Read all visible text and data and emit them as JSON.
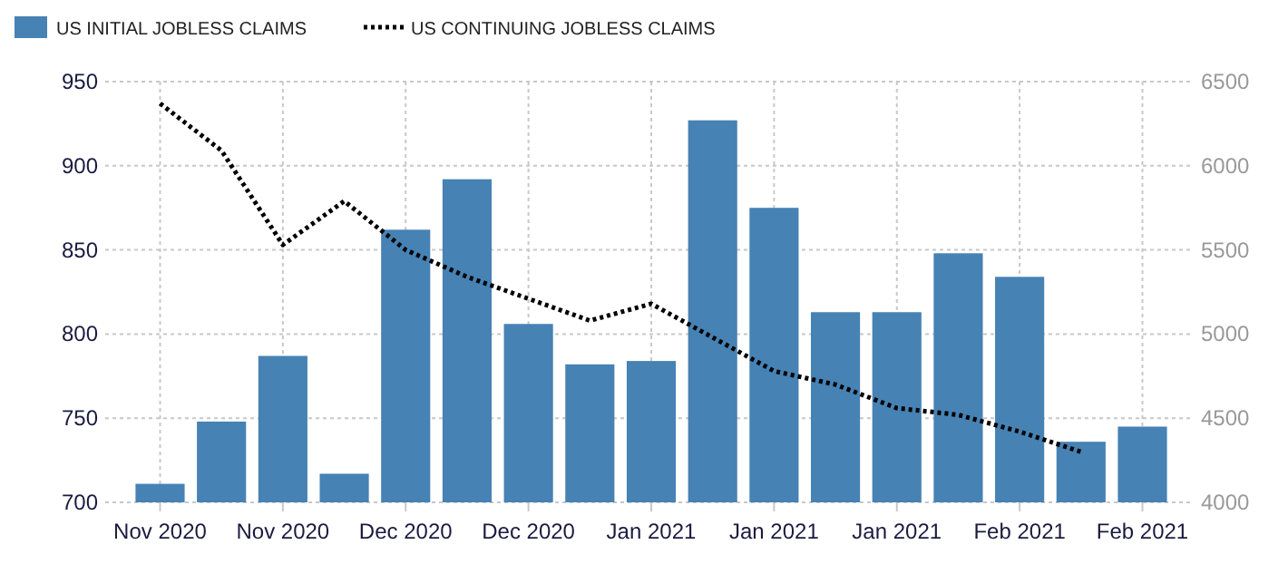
{
  "chart_data": {
    "type": "bar",
    "categories": [
      "Nov 2020",
      null,
      "Nov 2020",
      null,
      "Dec 2020",
      null,
      "Dec 2020",
      null,
      "Jan 2021",
      null,
      "Jan 2021",
      null,
      "Jan 2021",
      null,
      "Feb 2021",
      null,
      "Feb 2021"
    ],
    "series": [
      {
        "name": "US INITIAL JOBLESS CLAIMS",
        "color": "#4682b4",
        "values": [
          711,
          748,
          787,
          717,
          862,
          892,
          806,
          782,
          784,
          927,
          875,
          813,
          813,
          848,
          834,
          736,
          745
        ]
      },
      {
        "name": "US CONTINUING JOBLESS CLAIMS",
        "type": "line",
        "axis": "y2",
        "color": "#000000",
        "line_style": "dotted",
        "values": [
          6370,
          6090,
          5530,
          5790,
          5500,
          5340,
          5210,
          5080,
          5180,
          4980,
          4780,
          4700,
          4560,
          4520,
          4420,
          4300,
          null
        ]
      }
    ],
    "ylim": [
      700,
      950
    ],
    "yticks": [
      700,
      750,
      800,
      850,
      900,
      950
    ],
    "y2lim": [
      4000,
      6500
    ],
    "y2ticks": [
      4000,
      4500,
      5000,
      5500,
      6000,
      6500
    ],
    "grid": true,
    "legend": "top left"
  }
}
